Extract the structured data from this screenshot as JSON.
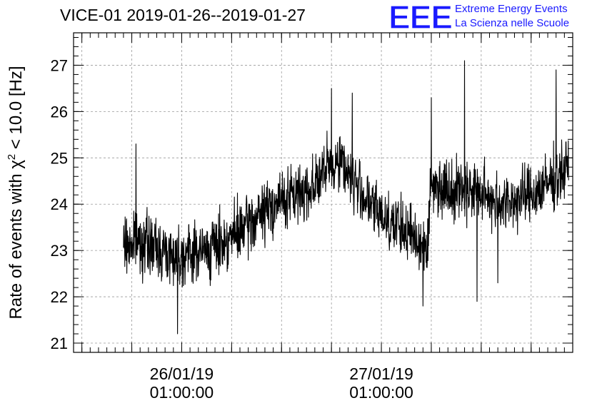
{
  "chart_data": {
    "type": "line",
    "title": "VICE-01 2019-01-26--2019-01-27",
    "ylabel": "Rate of events with χ² < 10.0 [Hz]",
    "ylabel_parts": {
      "pre": "Rate of events with χ",
      "sup": "2",
      "post": " < 10.0 [Hz]"
    },
    "xlabel": "",
    "xlim": [
      "2019-01-25 12:00",
      "2019-01-28 00:00"
    ],
    "ylim": [
      20.8,
      27.7
    ],
    "yticks": [
      21,
      22,
      23,
      24,
      25,
      26,
      27
    ],
    "xticks": [
      {
        "x": "2019-01-26 01:00",
        "line1": "26/01/19",
        "line2": "01:00:00"
      },
      {
        "x": "2019-01-27 01:00",
        "line1": "27/01/19",
        "line2": "01:00:00"
      }
    ],
    "grid": true,
    "series": [
      {
        "color": "#000000",
        "trend": [
          [
            "2019-01-25 18:00",
            23.1
          ],
          [
            "2019-01-25 20:00",
            23.2
          ],
          [
            "2019-01-26 00:00",
            22.9
          ],
          [
            "2019-01-26 04:00",
            23.0
          ],
          [
            "2019-01-26 08:00",
            23.4
          ],
          [
            "2019-01-26 12:00",
            24.0
          ],
          [
            "2019-01-26 16:00",
            24.3
          ],
          [
            "2019-01-26 20:00",
            25.0
          ],
          [
            "2019-01-26 22:00",
            24.4
          ],
          [
            "2019-01-27 00:00",
            23.9
          ],
          [
            "2019-01-27 04:00",
            23.4
          ],
          [
            "2019-01-27 06:30",
            23.1
          ],
          [
            "2019-01-27 07:00",
            24.4
          ],
          [
            "2019-01-27 12:00",
            24.3
          ],
          [
            "2019-01-27 16:00",
            24.0
          ],
          [
            "2019-01-27 20:00",
            24.3
          ],
          [
            "2019-01-27 23:30",
            24.8
          ]
        ],
        "noise_amplitude": 0.45,
        "peaks": [
          [
            "2019-01-25 19:30",
            25.3
          ],
          [
            "2019-01-26 00:30",
            21.2
          ],
          [
            "2019-01-26 19:00",
            26.5
          ],
          [
            "2019-01-26 21:30",
            26.4
          ],
          [
            "2019-01-27 06:00",
            21.8
          ],
          [
            "2019-01-27 07:00",
            26.3
          ],
          [
            "2019-01-27 11:00",
            27.1
          ],
          [
            "2019-01-27 12:30",
            21.9
          ],
          [
            "2019-01-27 22:00",
            26.9
          ],
          [
            "2019-01-27 15:00",
            22.3
          ]
        ]
      }
    ]
  },
  "logo": {
    "mark": "EEE",
    "line1": "Extreme Energy Events",
    "line2": "La Scienza nelle Scuole",
    "color": "#1a1aff"
  }
}
